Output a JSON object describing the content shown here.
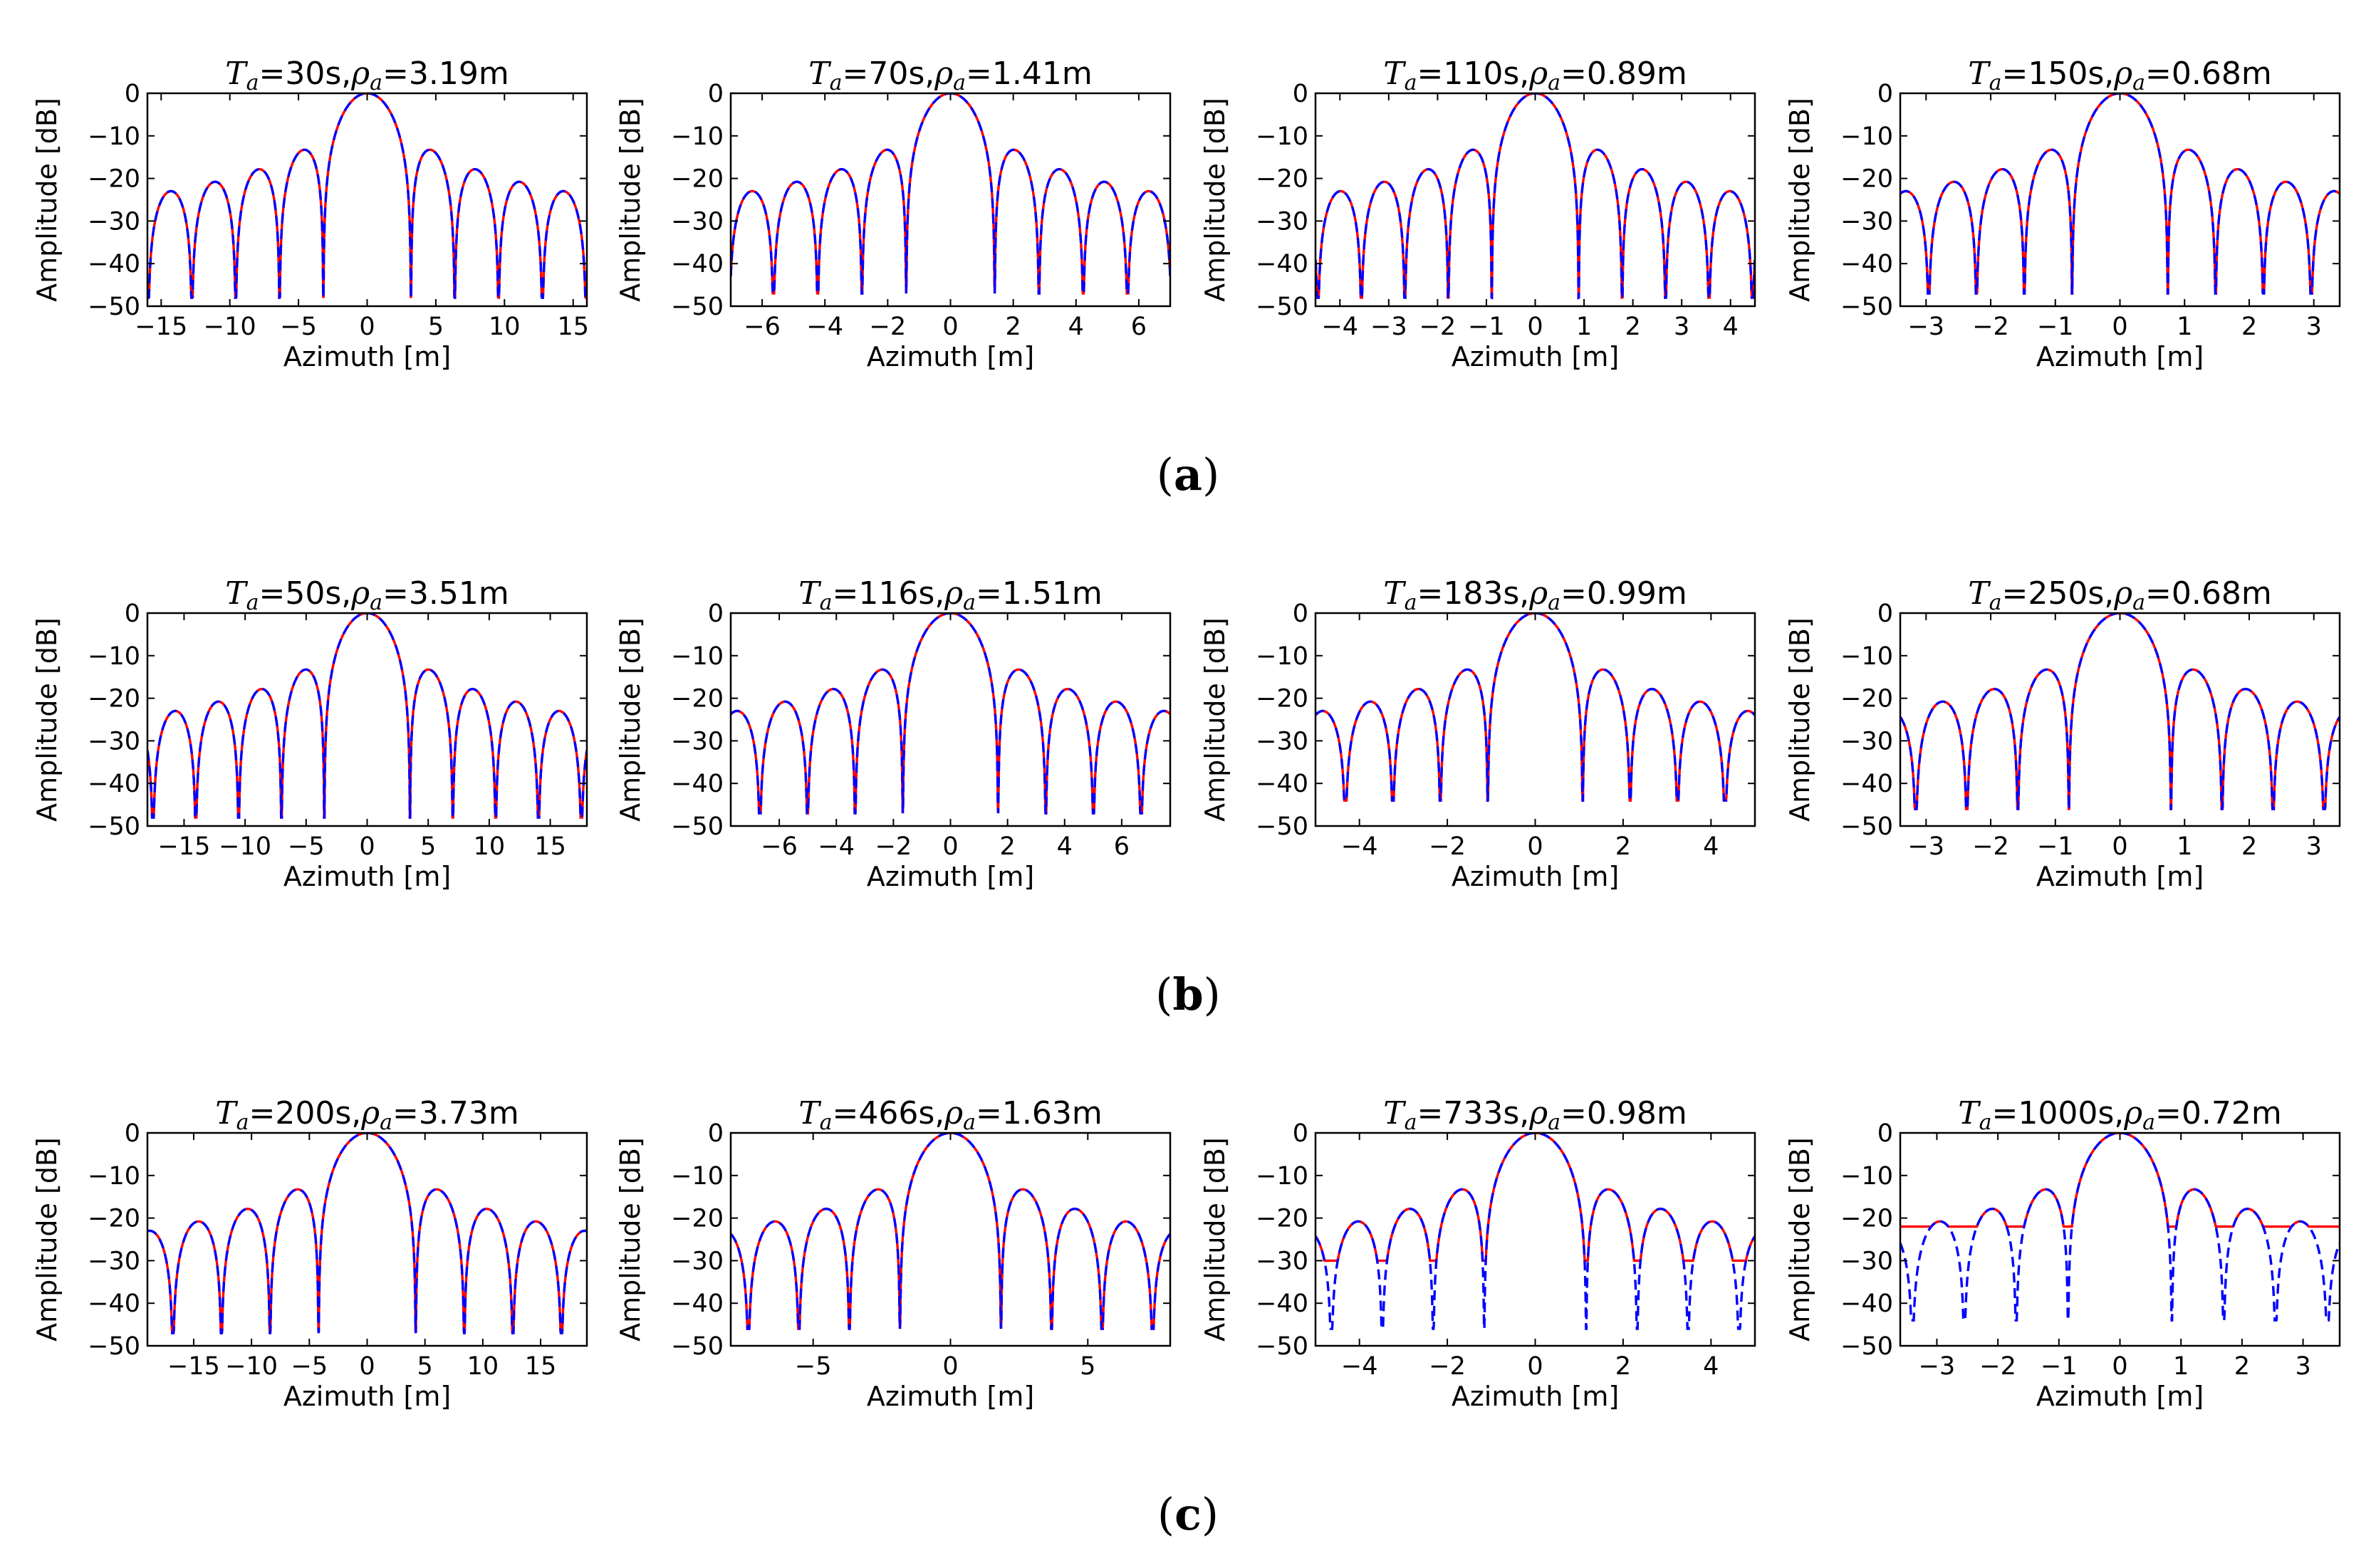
{
  "figure": {
    "panel_labels": [
      "a",
      "b",
      "c"
    ],
    "line_colors": {
      "solid": "#ff0000",
      "dashed": "#0000ff"
    }
  },
  "chart_data": [
    {
      "type": "line",
      "row": 0,
      "Ta": "30",
      "rho": "3.19",
      "title_tail": "s,",
      "title_units": "m",
      "xlabel": "Azimuth [m]",
      "ylabel": "Amplitude [dB]",
      "xlim": [
        -16,
        16
      ],
      "xticks": [
        -15,
        -10,
        -5,
        0,
        5,
        10,
        15
      ],
      "xtick_labels": [
        "−15",
        "−10",
        "−5",
        "0",
        "5",
        "10",
        "15"
      ],
      "ylim": [
        -50,
        0
      ],
      "yticks": [
        0,
        -10,
        -20,
        -30,
        -40,
        -50
      ],
      "ytick_labels": [
        "0",
        "−10",
        "−20",
        "−30",
        "−40",
        "−50"
      ],
      "series": [
        {
          "name": "solid",
          "style": "solid",
          "color": "#ff0000",
          "resolution_m": 3.19,
          "null_depth_db": null
        },
        {
          "name": "dashed",
          "style": "dashed",
          "color": "#0000ff",
          "resolution_m": 3.19,
          "null_depth_db": null
        }
      ],
      "null_floor_db": -48
    },
    {
      "type": "line",
      "row": 0,
      "Ta": "70",
      "rho": "1.41",
      "title_tail": "s,",
      "title_units": "m",
      "xlabel": "Azimuth [m]",
      "ylabel": "Amplitude [dB]",
      "xlim": [
        -7,
        7
      ],
      "xticks": [
        -6,
        -4,
        -2,
        0,
        2,
        4,
        6
      ],
      "xtick_labels": [
        "−6",
        "−4",
        "−2",
        "0",
        "2",
        "4",
        "6"
      ],
      "ylim": [
        -50,
        0
      ],
      "yticks": [
        0,
        -10,
        -20,
        -30,
        -40,
        -50
      ],
      "ytick_labels": [
        "0",
        "−10",
        "−20",
        "−30",
        "−40",
        "−50"
      ],
      "series": [
        {
          "name": "solid",
          "style": "solid",
          "color": "#ff0000",
          "resolution_m": 1.41
        },
        {
          "name": "dashed",
          "style": "dashed",
          "color": "#0000ff",
          "resolution_m": 1.41
        }
      ],
      "null_floor_db": -47
    },
    {
      "type": "line",
      "row": 0,
      "Ta": "110",
      "rho": "0.89",
      "title_tail": "s,",
      "title_units": "m",
      "xlabel": "Azimuth [m]",
      "ylabel": "Amplitude [dB]",
      "xlim": [
        -4.5,
        4.5
      ],
      "xticks": [
        -4,
        -3,
        -2,
        -1,
        0,
        1,
        2,
        3,
        4
      ],
      "xtick_labels": [
        "−4",
        "−3",
        "−2",
        "−1",
        "0",
        "1",
        "2",
        "3",
        "4"
      ],
      "ylim": [
        -50,
        0
      ],
      "yticks": [
        0,
        -10,
        -20,
        -30,
        -40,
        -50
      ],
      "ytick_labels": [
        "0",
        "−10",
        "−20",
        "−30",
        "−40",
        "−50"
      ],
      "series": [
        {
          "name": "solid",
          "style": "solid",
          "color": "#ff0000",
          "resolution_m": 0.89
        },
        {
          "name": "dashed",
          "style": "dashed",
          "color": "#0000ff",
          "resolution_m": 0.89
        }
      ],
      "null_floor_db": -48
    },
    {
      "type": "line",
      "row": 0,
      "Ta": "150",
      "rho": "0.68",
      "title_tail": "s,",
      "title_units": "m",
      "xlabel": "Azimuth [m]",
      "ylabel": "Amplitude [dB]",
      "xlim": [
        -3.4,
        3.4
      ],
      "xticks": [
        -3,
        -2,
        -1,
        0,
        1,
        2,
        3
      ],
      "xtick_labels": [
        "−3",
        "−2",
        "−1",
        "0",
        "1",
        "2",
        "3"
      ],
      "ylim": [
        -50,
        0
      ],
      "yticks": [
        0,
        -10,
        -20,
        -30,
        -40,
        -50
      ],
      "ytick_labels": [
        "0",
        "−10",
        "−20",
        "−30",
        "−40",
        "−50"
      ],
      "series": [
        {
          "name": "solid",
          "style": "solid",
          "color": "#ff0000",
          "resolution_m": 0.74
        },
        {
          "name": "dashed",
          "style": "dashed",
          "color": "#0000ff",
          "resolution_m": 0.74
        }
      ],
      "null_floor_db": -47
    },
    {
      "type": "line",
      "row": 1,
      "Ta": "50",
      "rho": "3.51",
      "title_tail": "s,",
      "title_units": "m",
      "xlabel": "Azimuth [m]",
      "ylabel": "Amplitude [dB]",
      "xlim": [
        -18,
        18
      ],
      "xticks": [
        -15,
        -10,
        -5,
        0,
        5,
        10,
        15
      ],
      "xtick_labels": [
        "−15",
        "−10",
        "−5",
        "0",
        "5",
        "10",
        "15"
      ],
      "ylim": [
        -50,
        0
      ],
      "yticks": [
        0,
        -10,
        -20,
        -30,
        -40,
        -50
      ],
      "ytick_labels": [
        "0",
        "−10",
        "−20",
        "−30",
        "−40",
        "−50"
      ],
      "series": [
        {
          "name": "solid",
          "style": "solid",
          "color": "#ff0000",
          "resolution_m": 3.51
        },
        {
          "name": "dashed",
          "style": "dashed",
          "color": "#0000ff",
          "resolution_m": 3.51
        }
      ],
      "null_floor_db": -48
    },
    {
      "type": "line",
      "row": 1,
      "Ta": "116",
      "rho": "1.51",
      "title_tail": "s,",
      "title_units": "m",
      "xlabel": "Azimuth [m]",
      "ylabel": "Amplitude [dB]",
      "xlim": [
        -7.7,
        7.7
      ],
      "xticks": [
        -6,
        -4,
        -2,
        0,
        2,
        4,
        6
      ],
      "xtick_labels": [
        "−6",
        "−4",
        "−2",
        "0",
        "2",
        "4",
        "6"
      ],
      "ylim": [
        -50,
        0
      ],
      "yticks": [
        0,
        -10,
        -20,
        -30,
        -40,
        -50
      ],
      "ytick_labels": [
        "0",
        "−10",
        "−20",
        "−30",
        "−40",
        "−50"
      ],
      "series": [
        {
          "name": "solid",
          "style": "solid",
          "color": "#ff0000",
          "resolution_m": 1.67
        },
        {
          "name": "dashed",
          "style": "dashed",
          "color": "#0000ff",
          "resolution_m": 1.67
        }
      ],
      "null_floor_db": -47
    },
    {
      "type": "line",
      "row": 1,
      "Ta": "183",
      "rho": "0.99",
      "title_tail": "s,",
      "title_units": "m",
      "xlabel": "Azimuth [m]",
      "ylabel": "Amplitude [dB]",
      "xlim": [
        -5,
        5
      ],
      "xticks": [
        -4,
        -2,
        0,
        2,
        4
      ],
      "xtick_labels": [
        "−4",
        "−2",
        "0",
        "2",
        "4"
      ],
      "ylim": [
        -50,
        0
      ],
      "yticks": [
        0,
        -10,
        -20,
        -30,
        -40,
        -50
      ],
      "ytick_labels": [
        "0",
        "−10",
        "−20",
        "−30",
        "−40",
        "−50"
      ],
      "series": [
        {
          "name": "solid",
          "style": "solid",
          "color": "#ff0000",
          "resolution_m": 1.08
        },
        {
          "name": "dashed",
          "style": "dashed",
          "color": "#0000ff",
          "resolution_m": 1.08
        }
      ],
      "null_floor_db": -44
    },
    {
      "type": "line",
      "row": 1,
      "Ta": "250",
      "rho": "0.68",
      "title_tail": "s,",
      "title_units": "m",
      "xlabel": "Azimuth [m]",
      "ylabel": "Amplitude [dB]",
      "xlim": [
        -3.4,
        3.4
      ],
      "xticks": [
        -3,
        -2,
        -1,
        0,
        1,
        2,
        3
      ],
      "xtick_labels": [
        "−3",
        "−2",
        "−1",
        "0",
        "1",
        "2",
        "3"
      ],
      "ylim": [
        -50,
        0
      ],
      "yticks": [
        0,
        -10,
        -20,
        -30,
        -40,
        -50
      ],
      "ytick_labels": [
        "0",
        "−10",
        "−20",
        "−30",
        "−40",
        "−50"
      ],
      "series": [
        {
          "name": "solid",
          "style": "solid",
          "color": "#ff0000",
          "resolution_m": 0.79
        },
        {
          "name": "dashed",
          "style": "dashed",
          "color": "#0000ff",
          "resolution_m": 0.79
        }
      ],
      "null_floor_db": -46
    },
    {
      "type": "line",
      "row": 2,
      "Ta": "200",
      "rho": "3.73",
      "title_tail": "s,",
      "title_units": "m",
      "xlabel": "Azimuth [m]",
      "ylabel": "Amplitude [dB]",
      "xlim": [
        -19,
        19
      ],
      "xticks": [
        -15,
        -10,
        -5,
        0,
        5,
        10,
        15
      ],
      "xtick_labels": [
        "−15",
        "−10",
        "−5",
        "0",
        "5",
        "10",
        "15"
      ],
      "ylim": [
        -50,
        0
      ],
      "yticks": [
        0,
        -10,
        -20,
        -30,
        -40,
        -50
      ],
      "ytick_labels": [
        "0",
        "−10",
        "−20",
        "−30",
        "−40",
        "−50"
      ],
      "series": [
        {
          "name": "solid",
          "style": "solid",
          "color": "#ff0000",
          "resolution_m": 4.2
        },
        {
          "name": "dashed",
          "style": "dashed",
          "color": "#0000ff",
          "resolution_m": 4.2
        }
      ],
      "null_floor_db": -47
    },
    {
      "type": "line",
      "row": 2,
      "Ta": "466",
      "rho": "1.63",
      "title_tail": "s,",
      "title_units": "m",
      "xlabel": "Azimuth [m]",
      "ylabel": "Amplitude [dB]",
      "xlim": [
        -8,
        8
      ],
      "xticks": [
        -5,
        0,
        5
      ],
      "xtick_labels": [
        "−5",
        "0",
        "5"
      ],
      "ylim": [
        -50,
        0
      ],
      "yticks": [
        0,
        -10,
        -20,
        -30,
        -40,
        -50
      ],
      "ytick_labels": [
        "0",
        "−10",
        "−20",
        "−30",
        "−40",
        "−50"
      ],
      "series": [
        {
          "name": "solid",
          "style": "solid",
          "color": "#ff0000",
          "resolution_m": 1.84
        },
        {
          "name": "dashed",
          "style": "dashed",
          "color": "#0000ff",
          "resolution_m": 1.84
        }
      ],
      "null_floor_db": -46
    },
    {
      "type": "line",
      "row": 2,
      "Ta": "733",
      "rho": "0.98",
      "title_tail": "s,",
      "title_units": "m",
      "xlabel": "Azimuth [m]",
      "ylabel": "Amplitude [dB]",
      "xlim": [
        -5,
        5
      ],
      "xticks": [
        -4,
        -2,
        0,
        2,
        4
      ],
      "xtick_labels": [
        "−4",
        "−2",
        "0",
        "2",
        "4"
      ],
      "ylim": [
        -50,
        0
      ],
      "yticks": [
        0,
        -10,
        -20,
        -30,
        -40,
        -50
      ],
      "ytick_labels": [
        "0",
        "−10",
        "−20",
        "−30",
        "−40",
        "−50"
      ],
      "series": [
        {
          "name": "solid",
          "style": "solid",
          "color": "#ff0000",
          "resolution_m": 1.16,
          "null_depth_db": -30
        },
        {
          "name": "dashed",
          "style": "dashed",
          "color": "#0000ff",
          "resolution_m": 1.16
        }
      ],
      "null_floor_db": -46
    },
    {
      "type": "line",
      "row": 2,
      "Ta": "1000",
      "rho": "0.72",
      "title_tail": "s,",
      "title_units": "m",
      "xlabel": "Azimuth [m]",
      "ylabel": "Amplitude [dB]",
      "xlim": [
        -3.6,
        3.6
      ],
      "xticks": [
        -3,
        -2,
        -1,
        0,
        1,
        2,
        3
      ],
      "xtick_labels": [
        "−3",
        "−2",
        "−1",
        "0",
        "1",
        "2",
        "3"
      ],
      "ylim": [
        -50,
        0
      ],
      "yticks": [
        0,
        -10,
        -20,
        -30,
        -40,
        -50
      ],
      "ytick_labels": [
        "0",
        "−10",
        "−20",
        "−30",
        "−40",
        "−50"
      ],
      "series": [
        {
          "name": "solid",
          "style": "solid",
          "color": "#ff0000",
          "resolution_m": 0.85,
          "null_depth_db": -22
        },
        {
          "name": "dashed",
          "style": "dashed",
          "color": "#0000ff",
          "resolution_m": 0.85
        }
      ],
      "null_floor_db": -44
    }
  ]
}
